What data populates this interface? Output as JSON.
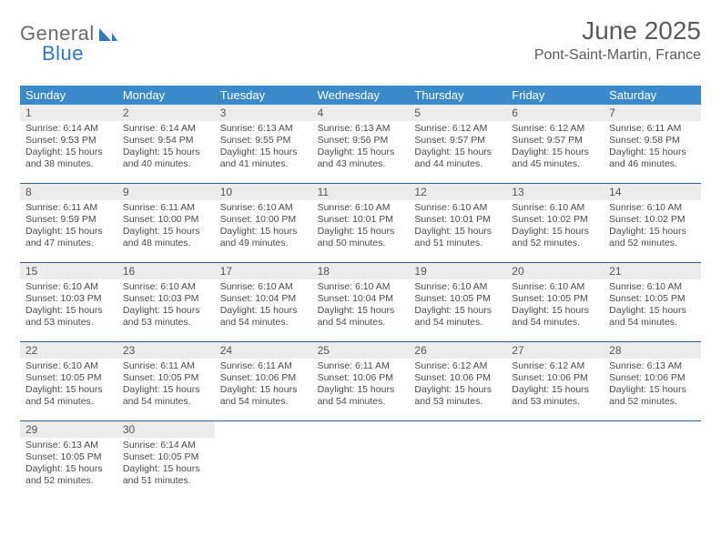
{
  "logo": {
    "text1": "General",
    "text2": "Blue"
  },
  "title": "June 2025",
  "subtitle": "Pont-Saint-Martin, France",
  "colors": {
    "header_bg": "#3a8acb",
    "header_fg": "#ffffff",
    "daynum_bg": "#ececec",
    "text": "#4a4a4a",
    "rule": "#2f5f8f",
    "logo_accent": "#2f78c3"
  },
  "fonts": {
    "title_size_pt": 28,
    "subtitle_size_pt": 16,
    "weekday_size_pt": 13,
    "body_size_pt": 10.5
  },
  "weekdays": [
    "Sunday",
    "Monday",
    "Tuesday",
    "Wednesday",
    "Thursday",
    "Friday",
    "Saturday"
  ],
  "labels": {
    "sunrise": "Sunrise:",
    "sunset": "Sunset:",
    "daylight": "Daylight:"
  },
  "weeks": [
    [
      {
        "n": "1",
        "sunrise": "6:14 AM",
        "sunset": "9:53 PM",
        "daylight": "15 hours and 38 minutes."
      },
      {
        "n": "2",
        "sunrise": "6:14 AM",
        "sunset": "9:54 PM",
        "daylight": "15 hours and 40 minutes."
      },
      {
        "n": "3",
        "sunrise": "6:13 AM",
        "sunset": "9:55 PM",
        "daylight": "15 hours and 41 minutes."
      },
      {
        "n": "4",
        "sunrise": "6:13 AM",
        "sunset": "9:56 PM",
        "daylight": "15 hours and 43 minutes."
      },
      {
        "n": "5",
        "sunrise": "6:12 AM",
        "sunset": "9:57 PM",
        "daylight": "15 hours and 44 minutes."
      },
      {
        "n": "6",
        "sunrise": "6:12 AM",
        "sunset": "9:57 PM",
        "daylight": "15 hours and 45 minutes."
      },
      {
        "n": "7",
        "sunrise": "6:11 AM",
        "sunset": "9:58 PM",
        "daylight": "15 hours and 46 minutes."
      }
    ],
    [
      {
        "n": "8",
        "sunrise": "6:11 AM",
        "sunset": "9:59 PM",
        "daylight": "15 hours and 47 minutes."
      },
      {
        "n": "9",
        "sunrise": "6:11 AM",
        "sunset": "10:00 PM",
        "daylight": "15 hours and 48 minutes."
      },
      {
        "n": "10",
        "sunrise": "6:10 AM",
        "sunset": "10:00 PM",
        "daylight": "15 hours and 49 minutes."
      },
      {
        "n": "11",
        "sunrise": "6:10 AM",
        "sunset": "10:01 PM",
        "daylight": "15 hours and 50 minutes."
      },
      {
        "n": "12",
        "sunrise": "6:10 AM",
        "sunset": "10:01 PM",
        "daylight": "15 hours and 51 minutes."
      },
      {
        "n": "13",
        "sunrise": "6:10 AM",
        "sunset": "10:02 PM",
        "daylight": "15 hours and 52 minutes."
      },
      {
        "n": "14",
        "sunrise": "6:10 AM",
        "sunset": "10:02 PM",
        "daylight": "15 hours and 52 minutes."
      }
    ],
    [
      {
        "n": "15",
        "sunrise": "6:10 AM",
        "sunset": "10:03 PM",
        "daylight": "15 hours and 53 minutes."
      },
      {
        "n": "16",
        "sunrise": "6:10 AM",
        "sunset": "10:03 PM",
        "daylight": "15 hours and 53 minutes."
      },
      {
        "n": "17",
        "sunrise": "6:10 AM",
        "sunset": "10:04 PM",
        "daylight": "15 hours and 54 minutes."
      },
      {
        "n": "18",
        "sunrise": "6:10 AM",
        "sunset": "10:04 PM",
        "daylight": "15 hours and 54 minutes."
      },
      {
        "n": "19",
        "sunrise": "6:10 AM",
        "sunset": "10:05 PM",
        "daylight": "15 hours and 54 minutes."
      },
      {
        "n": "20",
        "sunrise": "6:10 AM",
        "sunset": "10:05 PM",
        "daylight": "15 hours and 54 minutes."
      },
      {
        "n": "21",
        "sunrise": "6:10 AM",
        "sunset": "10:05 PM",
        "daylight": "15 hours and 54 minutes."
      }
    ],
    [
      {
        "n": "22",
        "sunrise": "6:10 AM",
        "sunset": "10:05 PM",
        "daylight": "15 hours and 54 minutes."
      },
      {
        "n": "23",
        "sunrise": "6:11 AM",
        "sunset": "10:05 PM",
        "daylight": "15 hours and 54 minutes."
      },
      {
        "n": "24",
        "sunrise": "6:11 AM",
        "sunset": "10:06 PM",
        "daylight": "15 hours and 54 minutes."
      },
      {
        "n": "25",
        "sunrise": "6:11 AM",
        "sunset": "10:06 PM",
        "daylight": "15 hours and 54 minutes."
      },
      {
        "n": "26",
        "sunrise": "6:12 AM",
        "sunset": "10:06 PM",
        "daylight": "15 hours and 53 minutes."
      },
      {
        "n": "27",
        "sunrise": "6:12 AM",
        "sunset": "10:06 PM",
        "daylight": "15 hours and 53 minutes."
      },
      {
        "n": "28",
        "sunrise": "6:13 AM",
        "sunset": "10:06 PM",
        "daylight": "15 hours and 52 minutes."
      }
    ],
    [
      {
        "n": "29",
        "sunrise": "6:13 AM",
        "sunset": "10:05 PM",
        "daylight": "15 hours and 52 minutes."
      },
      {
        "n": "30",
        "sunrise": "6:14 AM",
        "sunset": "10:05 PM",
        "daylight": "15 hours and 51 minutes."
      },
      null,
      null,
      null,
      null,
      null
    ]
  ]
}
